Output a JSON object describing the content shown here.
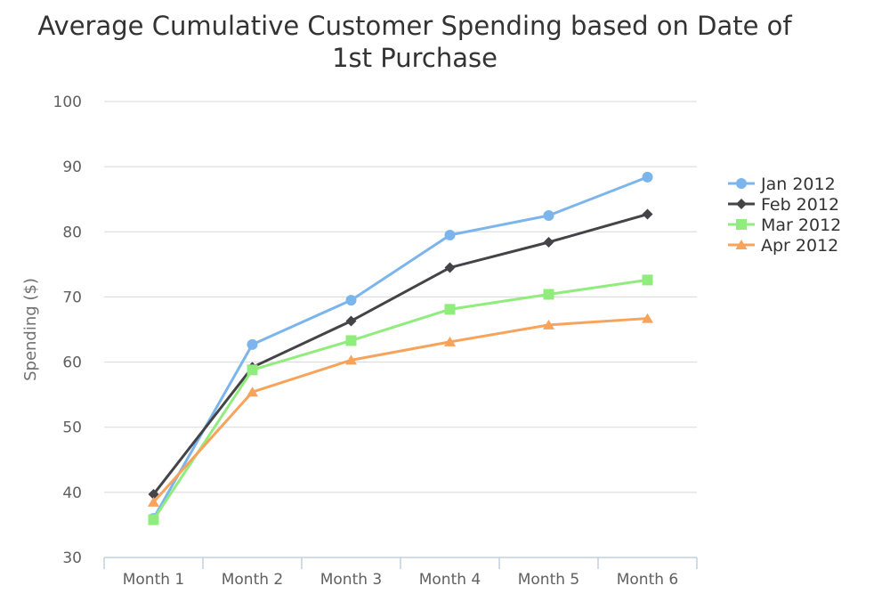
{
  "chart_data": {
    "type": "line",
    "title_lines": [
      "Average Cumulative Customer Spending based on Date of",
      "1st Purchase"
    ],
    "xlabel": "",
    "ylabel": "Spending ($)",
    "ylim": [
      30,
      100
    ],
    "yticks": [
      "30",
      "40",
      "50",
      "60",
      "70",
      "80",
      "90",
      "100"
    ],
    "categories": [
      "Month 1",
      "Month 2",
      "Month 3",
      "Month 4",
      "Month 5",
      "Month 6"
    ],
    "grid": true,
    "legend_position": "right",
    "series": [
      {
        "name": "Jan 2012",
        "color": "#7cb5ec",
        "marker": "circle",
        "values": [
          36.0,
          62.7,
          69.5,
          79.5,
          82.5,
          88.4
        ]
      },
      {
        "name": "Feb 2012",
        "color": "#434348",
        "marker": "diamond",
        "values": [
          39.7,
          59.2,
          66.3,
          74.5,
          78.4,
          82.7
        ]
      },
      {
        "name": "Mar 2012",
        "color": "#90ed7d",
        "marker": "square",
        "values": [
          35.8,
          58.8,
          63.3,
          68.1,
          70.4,
          72.6
        ]
      },
      {
        "name": "Apr 2012",
        "color": "#f7a35c",
        "marker": "triangle",
        "values": [
          38.5,
          55.4,
          60.3,
          63.1,
          65.7,
          66.7
        ]
      }
    ]
  }
}
